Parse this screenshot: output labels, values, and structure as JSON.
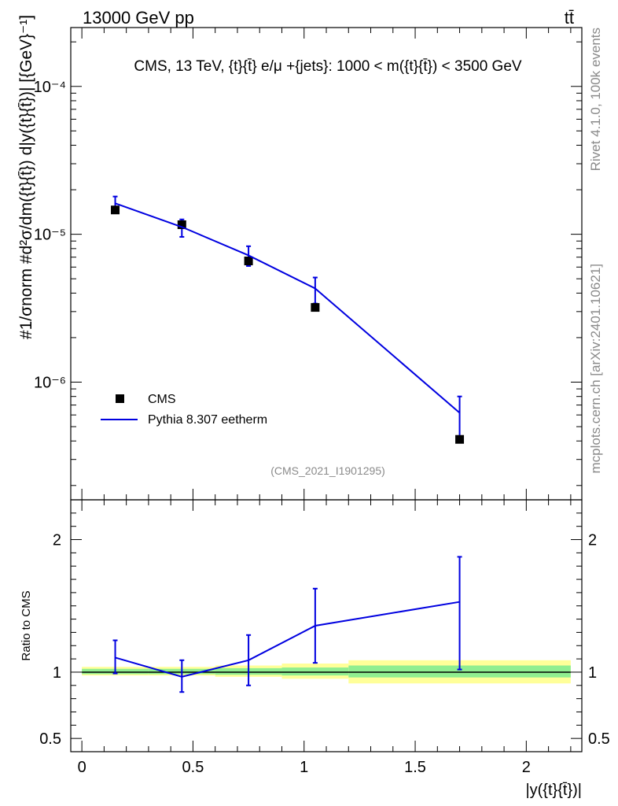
{
  "header": {
    "left": "13000 GeV pp",
    "right": "tt̄"
  },
  "side_labels": {
    "rivet": "Rivet 4.1.0,  100k events",
    "mcplots": "mcplots.cern.ch [arXiv:2401.10621]"
  },
  "chart_data": [
    {
      "type": "line",
      "title": "CMS, 13 TeV, {t}{t̄} e/μ +{jets}: 1000 < m({t}{t̄}) < 3500 GeV",
      "ylabel": "#1/σnorm #d²σ/dm({t}{t̄}) d|y({t}{t̄})| [{GeV}⁻¹]",
      "yscale": "log",
      "ylim": [
        1.6e-07,
        0.00025
      ],
      "xlim": [
        -0.05,
        2.25
      ],
      "y_tick_labels": [
        "10⁻⁶",
        "10⁻⁵",
        "10⁻⁴"
      ],
      "y_tick_values": [
        1e-06,
        1e-05,
        0.0001
      ],
      "legend_position": "bottom-left",
      "watermark": "(CMS_2021_I1901295)",
      "series": [
        {
          "name": "CMS",
          "style": "markers",
          "color": "#000000",
          "x": [
            0.15,
            0.45,
            0.75,
            1.05,
            1.7
          ],
          "values": [
            1.46e-05,
            1.16e-05,
            6.6e-06,
            3.2e-06,
            4.1e-07
          ]
        },
        {
          "name": "Pythia 8.307 eetherm",
          "style": "line",
          "color": "#0000e0",
          "x": [
            0.15,
            0.45,
            0.75,
            1.05,
            1.7
          ],
          "values": [
            1.62e-05,
            1.12e-05,
            7.2e-06,
            4.3e-06,
            6.2e-07
          ],
          "err_low": [
            1.46e-05,
            9.6e-06,
            6.1e-06,
            3.4e-06,
            4e-07
          ],
          "err_high": [
            1.8e-05,
            1.26e-05,
            8.3e-06,
            5.1e-06,
            8e-07
          ]
        }
      ]
    },
    {
      "type": "line",
      "ylabel": "Ratio to CMS",
      "xlabel": "|y({t}{t̄})|",
      "ylim": [
        0.4,
        2.3
      ],
      "xlim": [
        -0.05,
        2.25
      ],
      "x_tick_labels": [
        "0",
        "0.5",
        "1",
        "1.5",
        "2"
      ],
      "x_tick_values": [
        0,
        0.5,
        1,
        1.5,
        2
      ],
      "y_tick_labels": [
        "0.5",
        "1",
        "2"
      ],
      "y_tick_values": [
        0.5,
        1,
        2
      ],
      "bands": {
        "edges": [
          0,
          0.3,
          0.6,
          0.9,
          1.2,
          2.2
        ],
        "inner_low": [
          0.985,
          0.985,
          0.98,
          0.975,
          0.96
        ],
        "inner_high": [
          1.025,
          1.025,
          1.03,
          1.035,
          1.05
        ],
        "outer_low": [
          0.975,
          0.975,
          0.965,
          0.95,
          0.915
        ],
        "outer_high": [
          1.04,
          1.04,
          1.05,
          1.065,
          1.09
        ],
        "inner_color": "#90ee90",
        "outer_color": "#ffff99"
      },
      "series": [
        {
          "name": "Pythia 8.307 eetherm",
          "color": "#0000e0",
          "x": [
            0.15,
            0.45,
            0.75,
            1.05,
            1.7
          ],
          "values": [
            1.11,
            0.965,
            1.09,
            1.35,
            1.53
          ],
          "err_low": [
            0.99,
            0.85,
            0.9,
            1.07,
            1.02
          ],
          "err_high": [
            1.24,
            1.09,
            1.28,
            1.63,
            1.87
          ]
        }
      ]
    }
  ]
}
